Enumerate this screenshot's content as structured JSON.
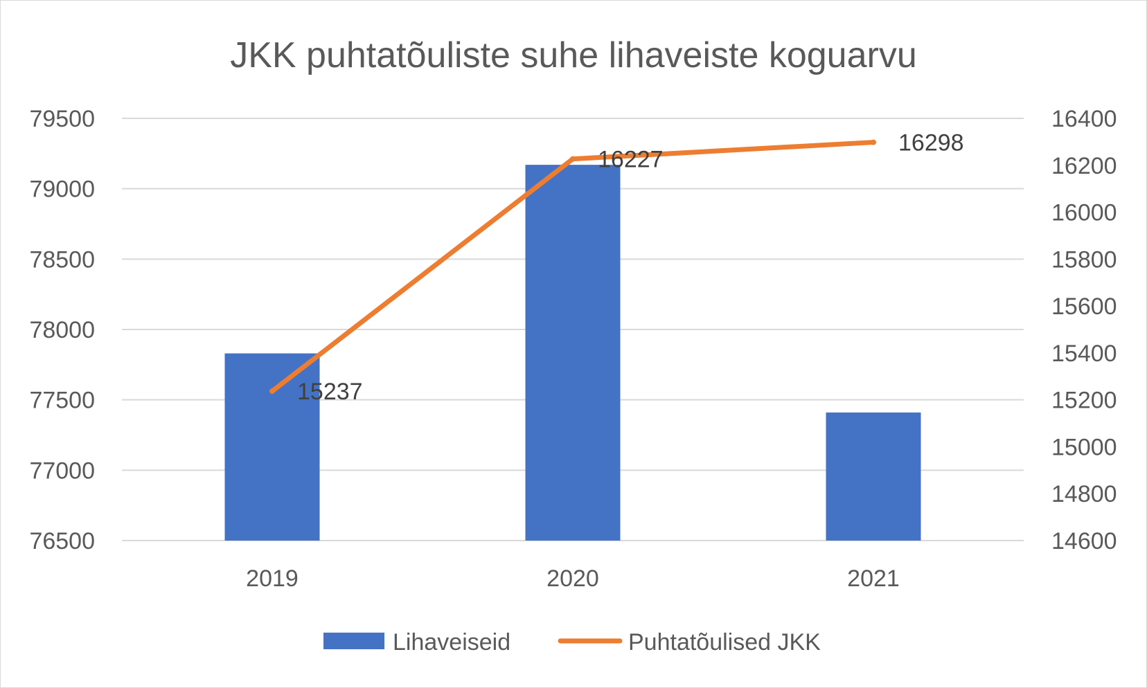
{
  "chart_data": {
    "type": "bar",
    "title": "JKK puhtatõuliste suhe lihaveiste koguarvu",
    "categories": [
      "2019",
      "2020",
      "2021"
    ],
    "series": [
      {
        "name": "Lihaveiseid",
        "type": "bar",
        "axis": "left",
        "color": "#4472C4",
        "values": [
          77830,
          79170,
          77410
        ]
      },
      {
        "name": "Puhtatõulised JKK",
        "type": "line",
        "axis": "right",
        "color": "#ED7D31",
        "values": [
          15237,
          16227,
          16298
        ],
        "data_labels": [
          "15237",
          "16227",
          "16298"
        ]
      }
    ],
    "y_left": {
      "min": 76500,
      "max": 79500,
      "ticks": [
        "76500",
        "77000",
        "77500",
        "78000",
        "78500",
        "79000",
        "79500"
      ]
    },
    "y_right": {
      "min": 14600,
      "max": 16400,
      "ticks": [
        "14600",
        "14800",
        "15000",
        "15200",
        "15400",
        "15600",
        "15800",
        "16000",
        "16200",
        "16400"
      ]
    },
    "grid": true,
    "legend": "bottom"
  }
}
